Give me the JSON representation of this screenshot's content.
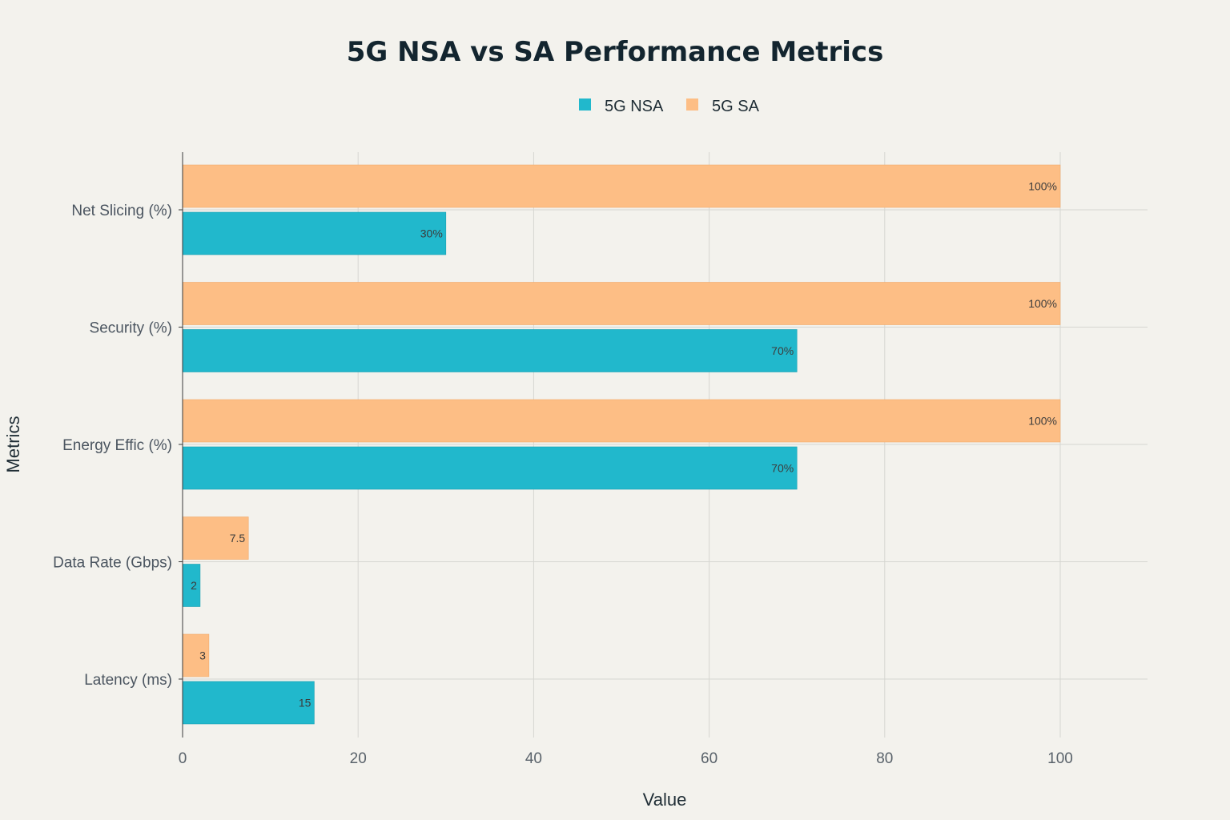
{
  "chart_data": {
    "type": "bar",
    "orientation": "horizontal",
    "title": "5G NSA vs SA Performance Metrics",
    "xlabel": "Value",
    "ylabel": "Metrics",
    "xlim": [
      0,
      110
    ],
    "xticks": [
      0,
      20,
      40,
      60,
      80,
      100
    ],
    "grid": true,
    "legend_position": "top-center",
    "categories": [
      "Net Slicing (%)",
      "Security (%)",
      "Energy Effic (%)",
      "Data Rate (Gbps)",
      "Latency (ms)"
    ],
    "series": [
      {
        "name": "5G NSA",
        "color": "#21b8cc",
        "values": [
          30,
          70,
          70,
          2,
          15
        ],
        "labels": [
          "30%",
          "70%",
          "70%",
          "2",
          "15"
        ]
      },
      {
        "name": "5G SA",
        "color": "#fdbe85",
        "values": [
          100,
          100,
          100,
          7.5,
          3
        ],
        "labels": [
          "100%",
          "100%",
          "100%",
          "7.5",
          "3"
        ]
      }
    ]
  }
}
